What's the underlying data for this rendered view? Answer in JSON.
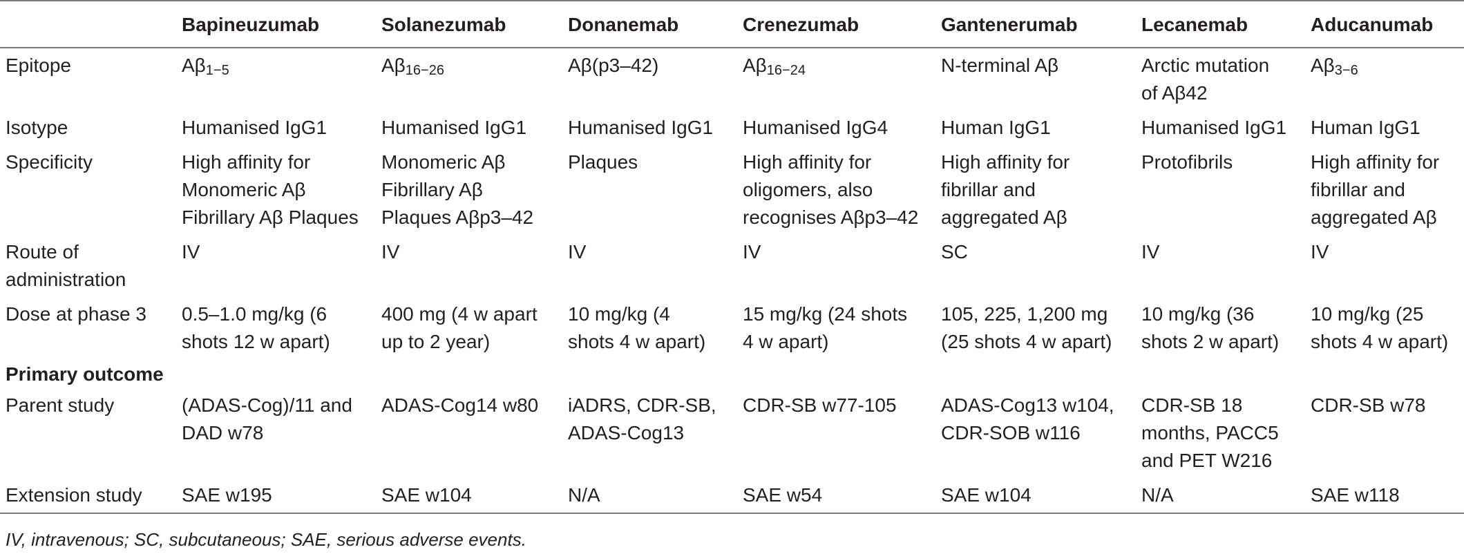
{
  "table": {
    "headers": [
      "",
      "Bapineuzumab",
      "Solanezumab",
      "Donanemab",
      "Crenezumab",
      "Gantenerumab",
      "Lecanemab",
      "Aducanumab"
    ],
    "epitope": {
      "label": "Epitope",
      "bapineuzumab": {
        "base": "Aβ",
        "sub": "1−5"
      },
      "solanezumab": {
        "base": "Aβ",
        "sub": "16−26"
      },
      "donanemab": "Aβ(p3–42)",
      "crenezumab": {
        "base": "Aβ",
        "sub": "16−24"
      },
      "gantenerumab": "N-terminal Aβ",
      "lecanemab": [
        "Arctic mutation",
        "of Aβ42"
      ],
      "aducanumab": {
        "base": "Aβ",
        "sub": "3−6"
      }
    },
    "rows": [
      {
        "label": [
          "Isotype"
        ],
        "cells": [
          [
            "Humanised IgG1"
          ],
          [
            "Humanised IgG1"
          ],
          [
            "Humanised IgG1"
          ],
          [
            "Humanised IgG4"
          ],
          [
            "Human IgG1"
          ],
          [
            "Humanised IgG1"
          ],
          [
            "Human IgG1"
          ]
        ]
      },
      {
        "label": [
          "Specificity"
        ],
        "cells": [
          [
            "High affinity for",
            "Monomeric Aβ",
            "Fibrillary Aβ Plaques"
          ],
          [
            "Monomeric Aβ",
            "Fibrillary Aβ",
            "Plaques Aβp3–42"
          ],
          [
            "Plaques"
          ],
          [
            "High affinity for",
            "oligomers, also",
            "recognises Aβp3–42"
          ],
          [
            "High affinity for",
            "fibrillar and",
            "aggregated Aβ"
          ],
          [
            "Protofibrils"
          ],
          [
            "High affinity for",
            "fibrillar and",
            "aggregated Aβ"
          ]
        ]
      },
      {
        "label": [
          "Route of",
          "administration"
        ],
        "cells": [
          [
            "IV"
          ],
          [
            "IV"
          ],
          [
            "IV"
          ],
          [
            "IV"
          ],
          [
            "SC"
          ],
          [
            "IV"
          ],
          [
            "IV"
          ]
        ]
      },
      {
        "label": [
          "Dose at phase 3"
        ],
        "cells": [
          [
            "0.5–1.0 mg/kg (6",
            "shots 12 w apart)"
          ],
          [
            "400 mg (4 w apart",
            "up to 2 year)"
          ],
          [
            "10 mg/kg (4",
            "shots 4 w apart)"
          ],
          [
            "15 mg/kg (24 shots",
            "4 w apart)"
          ],
          [
            "105, 225, 1,200 mg",
            "(25 shots 4 w apart)"
          ],
          [
            "10 mg/kg (36",
            "shots 2 w apart)"
          ],
          [
            "10 mg/kg (25",
            "shots 4 w apart)"
          ]
        ]
      }
    ],
    "section_label": "Primary outcome",
    "rows2": [
      {
        "label": [
          "Parent study"
        ],
        "cells": [
          [
            "(ADAS-Cog)/11 and",
            "DAD w78"
          ],
          [
            "ADAS-Cog14 w80"
          ],
          [
            "iADRS, CDR-SB,",
            "ADAS-Cog13"
          ],
          [
            "CDR-SB w77-105"
          ],
          [
            "ADAS-Cog13 w104,",
            "CDR-SOB w116"
          ],
          [
            "CDR-SB 18",
            "months, PACC5",
            "and PET W216"
          ],
          [
            "CDR-SB w78"
          ]
        ]
      },
      {
        "label": [
          "Extension study"
        ],
        "cells": [
          [
            "SAE w195"
          ],
          [
            "SAE w104"
          ],
          [
            "N/A"
          ],
          [
            "SAE w54"
          ],
          [
            "SAE w104"
          ],
          [
            "N/A"
          ],
          [
            "SAE w118"
          ]
        ]
      }
    ]
  },
  "footnote": "IV, intravenous; SC, subcutaneous; SAE, serious adverse events."
}
